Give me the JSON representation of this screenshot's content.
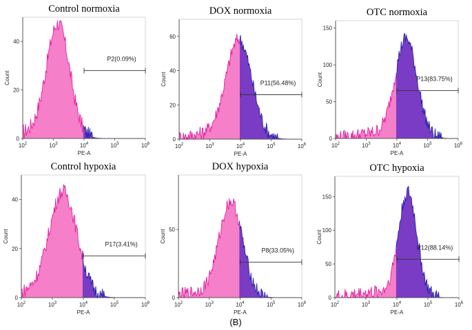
{
  "figure_label": "(B)",
  "chart_data": [
    {
      "type": "area",
      "title": "Control normoxia",
      "xlabel": "PE-A",
      "ylabel": "Count",
      "xscale": "log",
      "xlim": [
        2,
        6
      ],
      "xticks": [
        2,
        3,
        4,
        5,
        6
      ],
      "ylim": [
        0,
        50
      ],
      "yticks": [
        0,
        20,
        40
      ],
      "peak_log": 3.15,
      "width": 0.38,
      "peak_count": 47,
      "gate": {
        "label": "P2(0.09%)",
        "from_log": 4.0,
        "to_log": 6.0,
        "level": 28
      }
    },
    {
      "type": "area",
      "title": "DOX normoxia",
      "xlabel": "PE-A",
      "ylabel": "Count",
      "xscale": "log",
      "xlim": [
        2,
        6
      ],
      "xticks": [
        2,
        3,
        4,
        5,
        6
      ],
      "ylim": [
        0,
        70
      ],
      "yticks": [
        0,
        20,
        40,
        60
      ],
      "peak_log": 3.95,
      "width": 0.42,
      "peak_count": 58,
      "gate": {
        "label": "P11(56.48%)",
        "from_log": 4.0,
        "to_log": 6.0,
        "level": 26
      }
    },
    {
      "type": "area",
      "title": "OTC normoxia",
      "xlabel": "PE-A",
      "ylabel": "Count",
      "xscale": "log",
      "xlim": [
        2,
        6
      ],
      "xticks": [
        2,
        3,
        4,
        5,
        6
      ],
      "ylim": [
        0,
        160
      ],
      "yticks": [
        0,
        50,
        100,
        150
      ],
      "peak_log": 4.3,
      "width": 0.36,
      "peak_count": 135,
      "gate": {
        "label": "P13(83.75%)",
        "from_log": 4.0,
        "to_log": 6.0,
        "level": 65
      }
    },
    {
      "type": "area",
      "title": "Control hypoxia",
      "xlabel": "PE-A",
      "ylabel": "Count",
      "xscale": "log",
      "xlim": [
        2,
        6
      ],
      "xticks": [
        2,
        3,
        4,
        5,
        6
      ],
      "ylim": [
        0,
        50
      ],
      "yticks": [
        0,
        20,
        40
      ],
      "peak_log": 3.35,
      "width": 0.45,
      "peak_count": 43,
      "gate": {
        "label": "P17(3.41%)",
        "from_log": 4.0,
        "to_log": 6.0,
        "level": 17
      }
    },
    {
      "type": "area",
      "title": "DOX hypoxia",
      "xlabel": "PE-A",
      "ylabel": "Count",
      "xscale": "log",
      "xlim": [
        2,
        6
      ],
      "xticks": [
        2,
        3,
        4,
        5,
        6
      ],
      "ylim": [
        0,
        90
      ],
      "yticks": [
        0,
        50
      ],
      "peak_log": 3.7,
      "width": 0.38,
      "peak_count": 70,
      "gate": {
        "label": "P8(33.05%)",
        "from_log": 4.0,
        "to_log": 6.0,
        "level": 26
      }
    },
    {
      "type": "area",
      "title": "OTC hypoxia",
      "xlabel": "PE-A",
      "ylabel": "Count",
      "xscale": "log",
      "xlim": [
        2,
        6
      ],
      "xticks": [
        2,
        3,
        4,
        5,
        6
      ],
      "ylim": [
        0,
        180
      ],
      "yticks": [
        0,
        50,
        100,
        150
      ],
      "peak_log": 4.35,
      "width": 0.3,
      "peak_count": 155,
      "gate": {
        "label": "P12(88.14%)",
        "from_log": 4.0,
        "to_log": 6.0,
        "level": 57
      }
    }
  ]
}
